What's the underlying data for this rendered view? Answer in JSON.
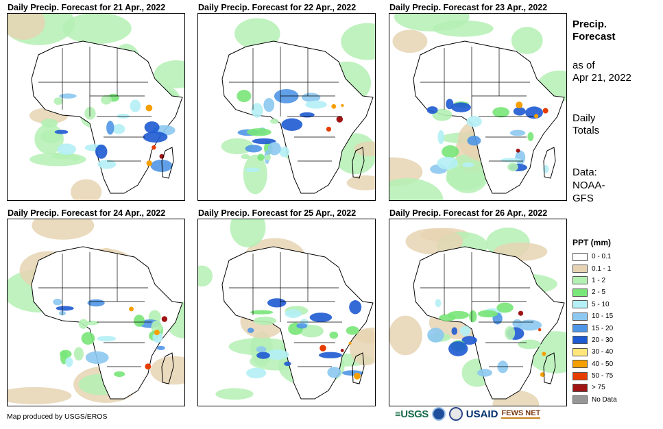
{
  "panels": [
    {
      "title": "Daily Precip. Forecast for 21 Apr., 2022"
    },
    {
      "title": "Daily Precip. Forecast for 22 Apr., 2022"
    },
    {
      "title": "Daily Precip. Forecast for 23 Apr., 2022"
    },
    {
      "title": "Daily Precip. Forecast for 24 Apr., 2022"
    },
    {
      "title": "Daily Precip. Forecast for 25 Apr., 2022"
    },
    {
      "title": "Daily Precip. Forecast for 26 Apr., 2022"
    }
  ],
  "side": {
    "heading_line1": "Precip.",
    "heading_line2": "Forecast",
    "asof_line1": "as of",
    "asof_line2": "Apr 21, 2022",
    "totals_line1": "Daily",
    "totals_line2": "Totals",
    "source_line1": "Data:",
    "source_line2": "NOAA-",
    "source_line3": "GFS"
  },
  "legend": {
    "title": "PPT (mm)",
    "items": [
      {
        "label": "0 - 0.1",
        "color": "#ffffff"
      },
      {
        "label": "0.1 - 1",
        "color": "#e6d3b3"
      },
      {
        "label": "1 - 2",
        "color": "#b4f0b4"
      },
      {
        "label": "2 - 5",
        "color": "#78e678"
      },
      {
        "label": "5 - 10",
        "color": "#b4f0f5"
      },
      {
        "label": "10 - 15",
        "color": "#8cc8f0"
      },
      {
        "label": "15 - 20",
        "color": "#5096e6"
      },
      {
        "label": "20 - 30",
        "color": "#1e5ad2"
      },
      {
        "label": "30 - 40",
        "color": "#ffe678"
      },
      {
        "label": "40 - 50",
        "color": "#f5a000"
      },
      {
        "label": "50 - 75",
        "color": "#e63c00"
      },
      {
        "label": "> 75",
        "color": "#a01414"
      },
      {
        "label": "No Data",
        "color": "#969696"
      }
    ]
  },
  "footer": {
    "credit": "Map produced by USGS/EROS"
  },
  "logos": {
    "usgs": "≡USGS",
    "usaid": "USAID",
    "fews": "FEWS NET"
  }
}
